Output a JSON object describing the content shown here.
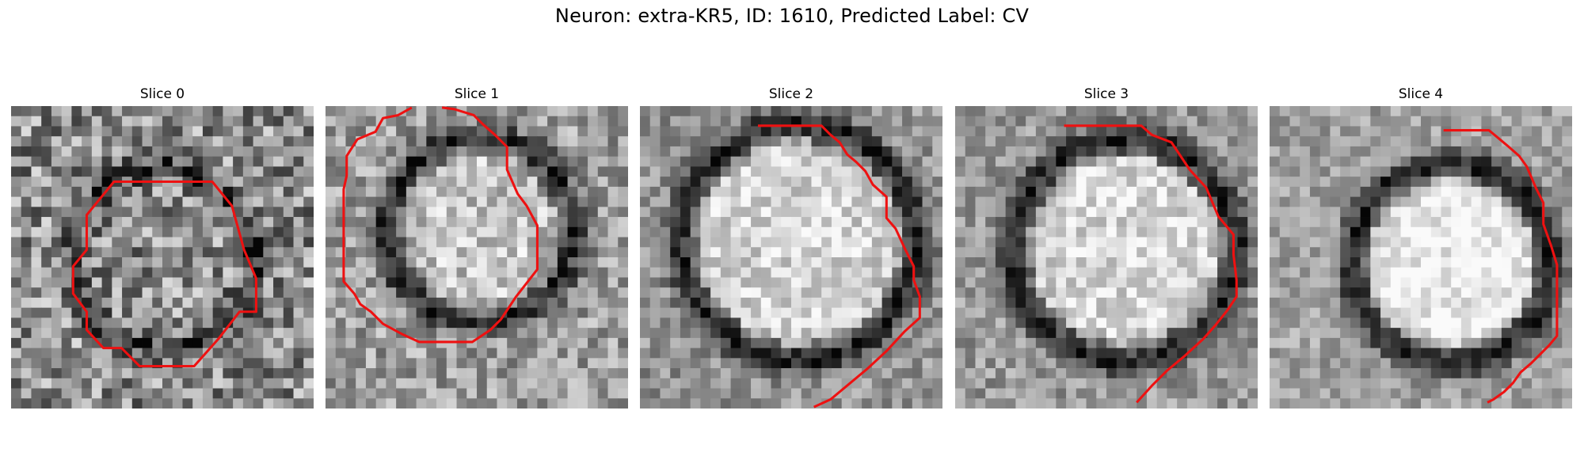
{
  "figure": {
    "suptitle": "Neuron: extra-KR5, ID: 1610, Predicted Label: CV",
    "contour_color": "#ee1111"
  },
  "panels": [
    {
      "title": "Slice 0",
      "contour": [
        [
          8.5,
          5.0
        ],
        [
          6.8,
          5.0
        ],
        [
          5.0,
          7.2
        ],
        [
          5.0,
          9.5
        ],
        [
          4.1,
          10.6
        ],
        [
          4.1,
          12.4
        ],
        [
          5.0,
          13.6
        ],
        [
          5.0,
          14.8
        ],
        [
          6.1,
          16.0
        ],
        [
          7.3,
          16.0
        ],
        [
          8.5,
          17.2
        ],
        [
          9.6,
          17.2
        ],
        [
          11.2,
          17.2
        ],
        [
          12.1,
          17.2
        ],
        [
          13.7,
          15.4
        ],
        [
          15.1,
          13.6
        ],
        [
          16.2,
          13.6
        ],
        [
          16.2,
          11.4
        ],
        [
          15.4,
          9.5
        ],
        [
          14.6,
          6.6
        ],
        [
          13.3,
          5.0
        ],
        [
          12.1,
          5.0
        ],
        [
          8.5,
          5.0
        ]
      ],
      "ring": {
        "cx": 10,
        "cy": 10,
        "r": 6.0,
        "w": 1.6,
        "dark": 0.22
      },
      "inner": 0.0,
      "base": 0.55,
      "noise": 0.32,
      "seed": 11
    },
    {
      "title": "Slice 1",
      "contour": [
        [
          5.7,
          0.1
        ],
        [
          4.8,
          0.6
        ],
        [
          3.8,
          0.8
        ],
        [
          3.3,
          1.7
        ],
        [
          2.1,
          2.2
        ],
        [
          1.4,
          3.3
        ],
        [
          1.4,
          4.6
        ],
        [
          1.2,
          5.5
        ],
        [
          1.2,
          10.8
        ],
        [
          1.2,
          11.6
        ],
        [
          1.9,
          12.4
        ],
        [
          2.3,
          13.1
        ],
        [
          3.0,
          13.6
        ],
        [
          3.8,
          14.4
        ],
        [
          5.1,
          15.1
        ],
        [
          6.2,
          15.6
        ],
        [
          7.3,
          15.6
        ],
        [
          9.7,
          15.6
        ],
        [
          10.9,
          14.8
        ],
        [
          11.6,
          14.1
        ],
        [
          12.6,
          12.6
        ],
        [
          14.0,
          10.8
        ],
        [
          14.0,
          9.5
        ],
        [
          14.0,
          7.9
        ],
        [
          13.3,
          6.6
        ],
        [
          12.7,
          5.8
        ],
        [
          12.0,
          4.2
        ],
        [
          12.0,
          2.7
        ],
        [
          11.2,
          1.9
        ],
        [
          10.4,
          1.2
        ],
        [
          9.8,
          0.6
        ],
        [
          8.5,
          0.2
        ],
        [
          7.7,
          0.1
        ]
      ],
      "ring": {
        "cx": 10.2,
        "cy": 8.2,
        "r": 6.2,
        "w": 1.7,
        "dark": 0.18
      },
      "inner": 0.15,
      "base": 0.62,
      "noise": 0.22,
      "seed": 23
    },
    {
      "title": "Slice 2",
      "contour": [
        [
          7.8,
          1.3
        ],
        [
          12.0,
          1.3
        ],
        [
          12.6,
          1.9
        ],
        [
          13.2,
          2.4
        ],
        [
          13.7,
          3.2
        ],
        [
          14.3,
          3.7
        ],
        [
          14.9,
          4.3
        ],
        [
          15.4,
          5.2
        ],
        [
          16.3,
          6.0
        ],
        [
          16.3,
          7.4
        ],
        [
          16.9,
          8.1
        ],
        [
          17.5,
          9.4
        ],
        [
          18.1,
          10.6
        ],
        [
          18.1,
          11.5
        ],
        [
          18.5,
          12.6
        ],
        [
          18.5,
          14.0
        ],
        [
          17.5,
          14.9
        ],
        [
          16.3,
          16.2
        ],
        [
          15.0,
          17.4
        ],
        [
          13.8,
          18.4
        ],
        [
          12.6,
          19.4
        ],
        [
          11.5,
          19.9
        ]
      ],
      "ring": {
        "cx": 10.5,
        "cy": 9.0,
        "r": 7.8,
        "w": 1.8,
        "dark": 0.15
      },
      "inner": 0.25,
      "base": 0.58,
      "noise": 0.18,
      "seed": 37
    },
    {
      "title": "Slice 3",
      "contour": [
        [
          7.2,
          1.3
        ],
        [
          12.3,
          1.3
        ],
        [
          13.0,
          1.9
        ],
        [
          14.3,
          2.4
        ],
        [
          14.9,
          3.3
        ],
        [
          15.5,
          4.2
        ],
        [
          16.6,
          5.4
        ],
        [
          17.4,
          7.3
        ],
        [
          18.4,
          8.5
        ],
        [
          18.4,
          9.8
        ],
        [
          18.6,
          11.5
        ],
        [
          18.6,
          12.6
        ],
        [
          18.0,
          13.5
        ],
        [
          17.2,
          14.5
        ],
        [
          16.4,
          15.4
        ],
        [
          15.2,
          16.5
        ],
        [
          14.0,
          17.5
        ],
        [
          13.0,
          18.5
        ],
        [
          12.0,
          19.6
        ]
      ],
      "ring": {
        "cx": 11.2,
        "cy": 9.5,
        "r": 7.4,
        "w": 1.8,
        "dark": 0.14
      },
      "inner": 0.25,
      "base": 0.6,
      "noise": 0.18,
      "seed": 53
    },
    {
      "title": "Slice 4",
      "contour": [
        [
          11.5,
          1.6
        ],
        [
          14.5,
          1.6
        ],
        [
          15.1,
          2.1
        ],
        [
          15.7,
          2.6
        ],
        [
          16.5,
          3.3
        ],
        [
          17.0,
          4.0
        ],
        [
          17.6,
          5.4
        ],
        [
          18.1,
          6.4
        ],
        [
          18.1,
          7.8
        ],
        [
          18.6,
          9.2
        ],
        [
          19.0,
          10.5
        ],
        [
          19.0,
          15.2
        ],
        [
          18.5,
          15.8
        ],
        [
          17.9,
          16.4
        ],
        [
          17.3,
          17.0
        ],
        [
          16.6,
          17.6
        ],
        [
          16.1,
          18.3
        ],
        [
          15.5,
          18.9
        ],
        [
          14.8,
          19.4
        ],
        [
          14.4,
          19.6
        ]
      ],
      "ring": {
        "cx": 12.0,
        "cy": 10.4,
        "r": 6.6,
        "w": 1.8,
        "dark": 0.14
      },
      "inner": 0.3,
      "base": 0.63,
      "noise": 0.16,
      "seed": 71
    }
  ]
}
